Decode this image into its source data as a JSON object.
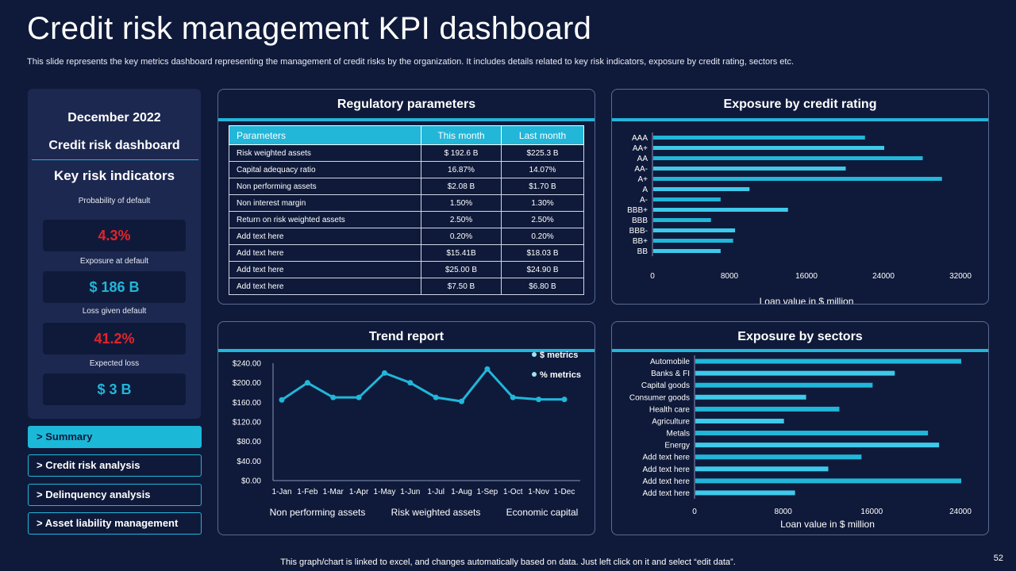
{
  "title": "Credit risk management KPI dashboard",
  "subtitle": "This slide represents the key metrics dashboard representing the management of credit risks by the organization. It includes details related to key risk indicators, exposure by credit rating, sectors etc.",
  "left_panel": {
    "date": "December 2022",
    "dashboard_label": "Credit risk dashboard",
    "kri_heading": "Key risk indicators",
    "kpis": [
      {
        "label": "Probability  of default",
        "value": "4.3%",
        "color": "#e4222b"
      },
      {
        "label": "Exposure at default",
        "value": "$ 186 B",
        "color": "#22b6d9"
      },
      {
        "label": "Loss given default",
        "value": "41.2%",
        "color": "#e4222b"
      },
      {
        "label": "Expected loss",
        "value": "$ 3 B",
        "color": "#22b6d9"
      }
    ]
  },
  "nav": [
    {
      "label": "> Summary",
      "active": true
    },
    {
      "label": "> Credit risk analysis",
      "active": false
    },
    {
      "label": "> Delinquency analysis",
      "active": false
    },
    {
      "label": "> Asset  liability management",
      "active": false
    }
  ],
  "regulatory": {
    "title": "Regulatory parameters",
    "headers": [
      "Parameters",
      "This month",
      "Last month"
    ],
    "rows": [
      [
        "Risk weighted assets",
        "$ 192.6 B",
        "$225.3 B"
      ],
      [
        "Capital adequacy ratio",
        "16.87%",
        "14.07%"
      ],
      [
        "Non performing assets",
        "$2.08 B",
        "$1.70 B"
      ],
      [
        "Non interest margin",
        "1.50%",
        "1.30%"
      ],
      [
        "Return on risk weighted assets",
        "2.50%",
        "2.50%"
      ],
      [
        "Add text here",
        "0.20%",
        "0.20%"
      ],
      [
        "Add text here",
        "$15.41B",
        "$18.03 B"
      ],
      [
        "Add text here",
        "$25.00 B",
        "$24.90 B"
      ],
      [
        "Add text here",
        "$7.50 B",
        "$6.80 B"
      ]
    ]
  },
  "chart_data": [
    {
      "type": "bar",
      "orientation": "horizontal",
      "title": "Exposure by credit rating",
      "categories": [
        "AAA",
        "AA+",
        "AA",
        "AA-",
        "A+",
        "A",
        "A-",
        "BBB+",
        "BBB",
        "BBB-",
        "BB+",
        "BB"
      ],
      "values": [
        22000,
        24000,
        28000,
        20000,
        30000,
        10000,
        7000,
        14000,
        6000,
        8500,
        8300,
        7000
      ],
      "xlabel": "Loan value  in $ million",
      "xlim": [
        0,
        32000
      ],
      "xticks": [
        0,
        8000,
        16000,
        24000,
        32000
      ],
      "color": "#22b6d9"
    },
    {
      "type": "line",
      "title": "Trend report",
      "categories": [
        "1-Jan",
        "1-Feb",
        "1-Mar",
        "1-Apr",
        "1-May",
        "1-Jun",
        "1-Jul",
        "1-Aug",
        "1-Sep",
        "1-Oct",
        "1-Nov",
        "1-Dec"
      ],
      "series": [
        {
          "name": "$ metrics",
          "values": [
            165,
            200,
            170,
            170,
            220,
            200,
            170,
            162,
            228,
            170,
            166,
            166
          ]
        }
      ],
      "legend": [
        "$ metrics",
        "% metrics"
      ],
      "ylim": [
        0,
        240
      ],
      "yticks": [
        "$0.00",
        "$40.00",
        "$80.00",
        "$120.00",
        "$160.00",
        "$200.00",
        "$240.00"
      ],
      "bottom_labels": [
        "Non performing assets",
        "Risk weighted assets",
        "Economic capital"
      ],
      "color": "#22b6d9"
    },
    {
      "type": "bar",
      "orientation": "horizontal",
      "title": "Exposure by sectors",
      "categories": [
        "Automobile",
        "Banks & FI",
        "Capital goods",
        "Consumer goods",
        "Health care",
        "Agriculture",
        "Metals",
        "Energy",
        "Add text here",
        "Add text here",
        "Add text here",
        "Add text here"
      ],
      "values": [
        24000,
        18000,
        16000,
        10000,
        13000,
        8000,
        21000,
        22000,
        15000,
        12000,
        24000,
        9000
      ],
      "xlabel": "Loan value  in $ million",
      "xlim": [
        0,
        24000
      ],
      "xticks": [
        0,
        8000,
        16000,
        24000
      ],
      "color": "#22b6d9"
    }
  ],
  "footer": "This graph/chart is linked to excel,  and changes automatically based on data. Just left click on it and select “edit data”.",
  "page_number": "52"
}
